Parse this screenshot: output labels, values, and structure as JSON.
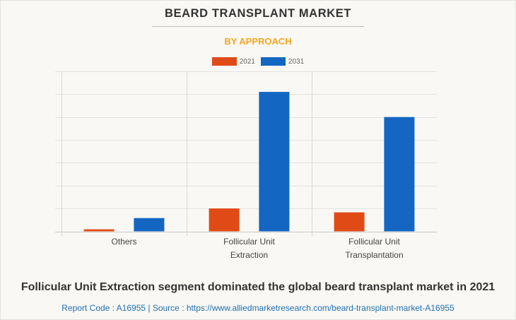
{
  "header": {
    "title": "BEARD TRANSPLANT MARKET",
    "subtitle": "BY APPROACH"
  },
  "colors": {
    "series_2021": "#e04a17",
    "series_2031": "#1366c1",
    "subtitle": "#f5a623",
    "source_text": "#1f6fb2"
  },
  "chart_data": {
    "type": "bar",
    "title": "BEARD TRANSPLANT MARKET",
    "subtitle": "BY APPROACH",
    "xlabel": "",
    "ylabel": "",
    "categories": [
      [
        "Others"
      ],
      [
        "Follicular Unit",
        "Extraction"
      ],
      [
        "Follicular Unit",
        "Transplantation"
      ]
    ],
    "series": [
      {
        "name": "2021",
        "values": [
          0.09,
          1.0,
          0.83
        ]
      },
      {
        "name": "2031",
        "values": [
          0.58,
          6.1,
          5.0
        ]
      }
    ],
    "ylim": [
      0,
      7
    ],
    "y_gridlines": 7,
    "y_tick_labels_shown": false,
    "grid": true,
    "legend": "top-center"
  },
  "footer": {
    "caption": "Follicular Unit Extraction segment dominated the global beard transplant market in 2021",
    "source": "Report Code : A16955  |  Source : https://www.alliedmarketresearch.com/beard-transplant-market-A16955"
  }
}
